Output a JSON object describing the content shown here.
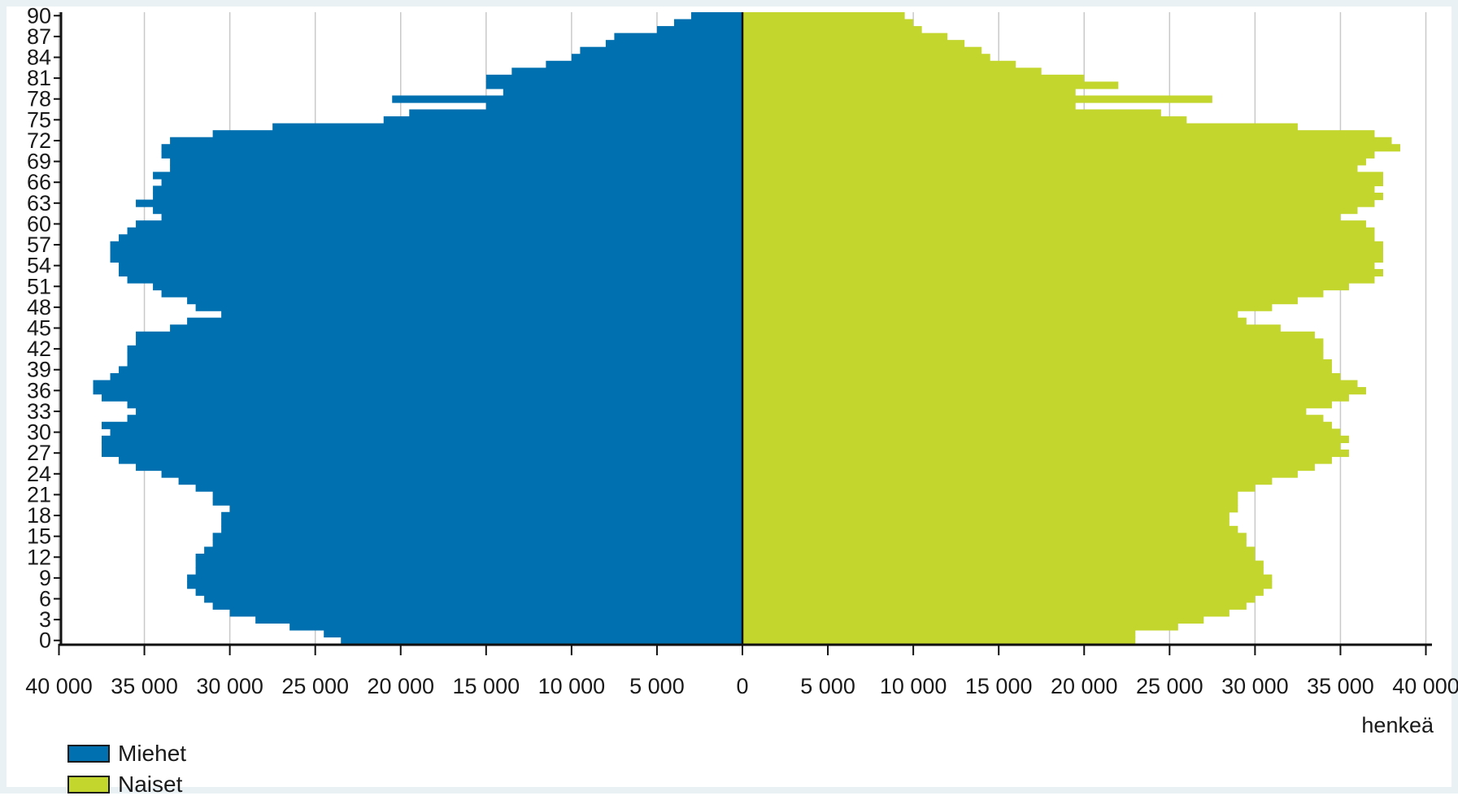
{
  "chart_data": {
    "type": "bar",
    "orientation": "horizontal-population-pyramid",
    "x_unit": "henkeä",
    "xlim": [
      -40000,
      40000
    ],
    "x_tick_values": [
      -40000,
      -35000,
      -30000,
      -25000,
      -20000,
      -15000,
      -10000,
      -5000,
      0,
      5000,
      10000,
      15000,
      20000,
      25000,
      30000,
      35000,
      40000
    ],
    "x_tick_labels": [
      "40 000",
      "35 000",
      "30 000",
      "25 000",
      "20 000",
      "15 000",
      "10 000",
      "5 000",
      "0",
      "5 000",
      "10 000",
      "15 000",
      "20 000",
      "25 000",
      "30 000",
      "35 000",
      "40 000"
    ],
    "y_tick_labels": [
      "0",
      "3",
      "6",
      "9",
      "12",
      "15",
      "18",
      "21",
      "24",
      "27",
      "30",
      "33",
      "36",
      "39",
      "42",
      "45",
      "48",
      "51",
      "54",
      "57",
      "60",
      "63",
      "66",
      "69",
      "72",
      "75",
      "78",
      "81",
      "84",
      "87",
      "90"
    ],
    "grid": "vertical",
    "legend_position": "bottom-left",
    "categories_ages": "0-90",
    "series": [
      {
        "name": "Miehet",
        "color": "#0070b0",
        "values": [
          23500,
          24500,
          26500,
          28500,
          30000,
          31000,
          31500,
          32000,
          32500,
          32500,
          32000,
          32000,
          32000,
          31500,
          31000,
          31000,
          30500,
          30500,
          30500,
          30000,
          31000,
          31000,
          32000,
          33000,
          34000,
          35500,
          36500,
          37500,
          37500,
          37500,
          37000,
          37500,
          36000,
          35500,
          36000,
          37500,
          38000,
          38000,
          37000,
          36500,
          36000,
          36000,
          36000,
          35500,
          35500,
          33500,
          32500,
          30500,
          32000,
          32500,
          34000,
          34500,
          36000,
          36500,
          36500,
          37000,
          37000,
          37000,
          36500,
          36000,
          35500,
          34000,
          34500,
          35500,
          34500,
          34500,
          34000,
          34500,
          33500,
          33500,
          34000,
          34000,
          33500,
          31000,
          27500,
          21000,
          19500,
          15000,
          20500,
          14000,
          15000,
          15000,
          13500,
          11500,
          10000,
          9500,
          8000,
          7500,
          5000,
          4000,
          3000
        ]
      },
      {
        "name": "Naiset",
        "color": "#c2d62e",
        "values": [
          23000,
          23000,
          25500,
          27000,
          28500,
          29500,
          30000,
          30500,
          31000,
          31000,
          30500,
          30500,
          30000,
          30000,
          29500,
          29500,
          29000,
          28500,
          28500,
          29000,
          29000,
          29000,
          30000,
          31000,
          32500,
          33500,
          34500,
          35500,
          35000,
          35500,
          35000,
          34500,
          34000,
          33000,
          34500,
          35500,
          36500,
          36000,
          35000,
          34500,
          34500,
          34000,
          34000,
          34000,
          33500,
          31500,
          29500,
          29000,
          31000,
          32500,
          34000,
          35500,
          37000,
          37500,
          37000,
          37500,
          37500,
          37500,
          37000,
          37000,
          36500,
          35000,
          36000,
          37000,
          37500,
          37000,
          37500,
          37500,
          36000,
          36500,
          37000,
          38500,
          38000,
          37000,
          32500,
          26000,
          24500,
          19500,
          27500,
          19500,
          22000,
          20000,
          17500,
          16000,
          14500,
          14000,
          13000,
          12000,
          10500,
          10000,
          9500
        ]
      }
    ]
  },
  "legend": {
    "items": [
      {
        "label": "Miehet",
        "color": "#0070b0"
      },
      {
        "label": "Naiset",
        "color": "#c2d62e"
      }
    ]
  }
}
